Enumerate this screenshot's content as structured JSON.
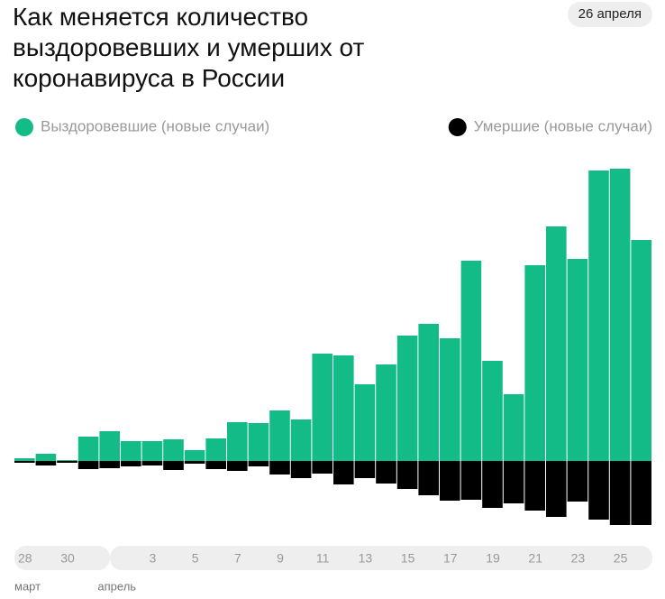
{
  "chart_data": {
    "type": "diverging-bar",
    "title": "Как меняется количество выздоровевших и умерших от коронавируса в России",
    "date_badge": "26 апреля",
    "categories": [
      "28",
      null,
      "30",
      null,
      null,
      null,
      "3",
      null,
      "5",
      null,
      "7",
      null,
      "9",
      null,
      "11",
      null,
      "13",
      null,
      "15",
      null,
      "17",
      null,
      "19",
      null,
      "21",
      null,
      "23",
      null,
      "25",
      null
    ],
    "months": [
      "март",
      "апрель"
    ],
    "series": [
      {
        "name": "Выздоровевшие (новые случаи)",
        "color": "#13bb86",
        "values": [
          3,
          8,
          1,
          27,
          33,
          22,
          22,
          24,
          12,
          25,
          43,
          42,
          56,
          46,
          119,
          117,
          85,
          107,
          139,
          152,
          136,
          222,
          111,
          74,
          217,
          260,
          224,
          322,
          324,
          245
        ]
      },
      {
        "name": "Умершие (новые случаи)",
        "color": "#000000",
        "values": [
          2,
          5,
          2,
          9,
          8,
          6,
          5,
          10,
          3,
          9,
          11,
          6,
          15,
          19,
          14,
          26,
          19,
          25,
          31,
          38,
          44,
          43,
          52,
          47,
          55,
          62,
          45,
          65,
          71,
          71
        ]
      }
    ]
  }
}
